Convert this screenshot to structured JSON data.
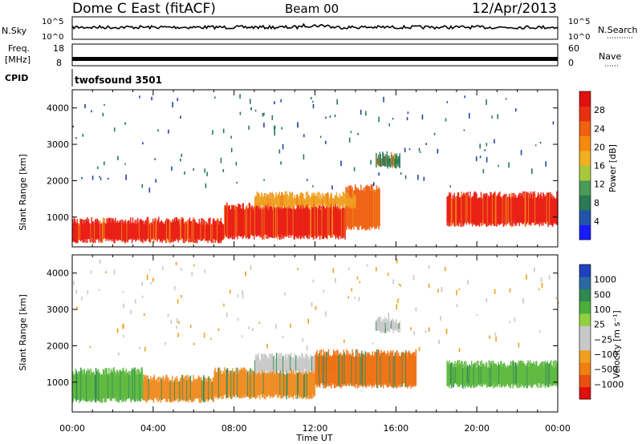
{
  "header": {
    "station": "Dome C East (fitACF)",
    "beam": "Beam 00",
    "date": "12/Apr/2013"
  },
  "param_panels": {
    "nsky_label": "N.Sky",
    "nsky_ticks": [
      "10^5",
      "10^0"
    ],
    "nsearch_label": "N.Search",
    "nsearch_ticks": [
      "10^5",
      "10^0"
    ],
    "freq_label_1": "Freq.",
    "freq_label_2": "[MHz]",
    "freq_ticks": [
      "18",
      "8"
    ],
    "nave_label": "Nave",
    "nave_ticks": [
      "60",
      "0"
    ],
    "cpid_label": "CPID",
    "cpid_value": "twofsound 3501"
  },
  "chart_data": [
    {
      "type": "heatmap",
      "title": "",
      "xlabel": "Time UT",
      "ylabel": "Slant Range [km]",
      "x_ticks": [
        "00:00",
        "04:00",
        "08:00",
        "12:00",
        "16:00",
        "20:00",
        "00:00"
      ],
      "xlim": [
        0,
        24
      ],
      "y_ticks": [
        1000,
        2000,
        3000,
        4000
      ],
      "ylim": [
        180,
        4500
      ],
      "colorbar": {
        "label": "Power [dB]",
        "ticks": [
          "4",
          "8",
          "12",
          "16",
          "20",
          "24",
          "28"
        ],
        "colors": [
          "#1a1aff",
          "#2255aa",
          "#2a7a55",
          "#4b9a55",
          "#a8c83c",
          "#f0b020",
          "#f78a10",
          "#f06010",
          "#e83010",
          "#e01010"
        ]
      },
      "bands": [
        {
          "t0": 0.0,
          "t1": 7.5,
          "r0": 350,
          "r1": 900,
          "value": "28"
        },
        {
          "t0": 7.5,
          "t1": 13.5,
          "r0": 450,
          "r1": 1300,
          "value": "28"
        },
        {
          "t0": 13.5,
          "t1": 15.2,
          "r0": 700,
          "r1": 1800,
          "value": "24"
        },
        {
          "t0": 9.0,
          "t1": 14.0,
          "r0": 1300,
          "r1": 1600,
          "value": "20"
        },
        {
          "t0": 18.5,
          "t1": 24.0,
          "r0": 800,
          "r1": 1600,
          "value": "28"
        },
        {
          "t0": 15.0,
          "t1": 16.2,
          "r0": 2400,
          "r1": 2700,
          "value": "12"
        }
      ]
    },
    {
      "type": "heatmap",
      "title": "",
      "xlabel": "Time UT",
      "ylabel": "Slant Range [km]",
      "x_ticks": [
        "00:00",
        "04:00",
        "08:00",
        "12:00",
        "16:00",
        "20:00",
        "00:00"
      ],
      "xlim": [
        0,
        24
      ],
      "y_ticks": [
        1000,
        2000,
        3000,
        4000
      ],
      "ylim": [
        180,
        4500
      ],
      "colorbar": {
        "label": "Velocity [m s⁻¹]",
        "ticks": [
          "1000",
          "500",
          "100",
          "25",
          "−25",
          "−100",
          "−500",
          "−1000"
        ],
        "colors": [
          "#2040c0",
          "#2a6aa0",
          "#2f8a50",
          "#4caf3c",
          "#90d040",
          "#c8c8c8",
          "#c8c8c8",
          "#f0a020",
          "#f08010",
          "#e85010",
          "#e01010"
        ]
      },
      "bands": [
        {
          "t0": 0.0,
          "t1": 3.5,
          "r0": 500,
          "r1": 1300,
          "value": "100"
        },
        {
          "t0": 3.5,
          "t1": 7.0,
          "r0": 500,
          "r1": 1100,
          "value": "-100"
        },
        {
          "t0": 7.0,
          "t1": 12.0,
          "r0": 600,
          "r1": 1300,
          "value": "-100"
        },
        {
          "t0": 9.0,
          "t1": 13.0,
          "r0": 1300,
          "r1": 1700,
          "value": "25"
        },
        {
          "t0": 12.0,
          "t1": 17.0,
          "r0": 900,
          "r1": 1800,
          "value": "-500"
        },
        {
          "t0": 18.5,
          "t1": 24.0,
          "r0": 900,
          "r1": 1500,
          "value": "100"
        },
        {
          "t0": 15.0,
          "t1": 16.2,
          "r0": 2400,
          "r1": 2700,
          "value": "25"
        }
      ]
    }
  ]
}
